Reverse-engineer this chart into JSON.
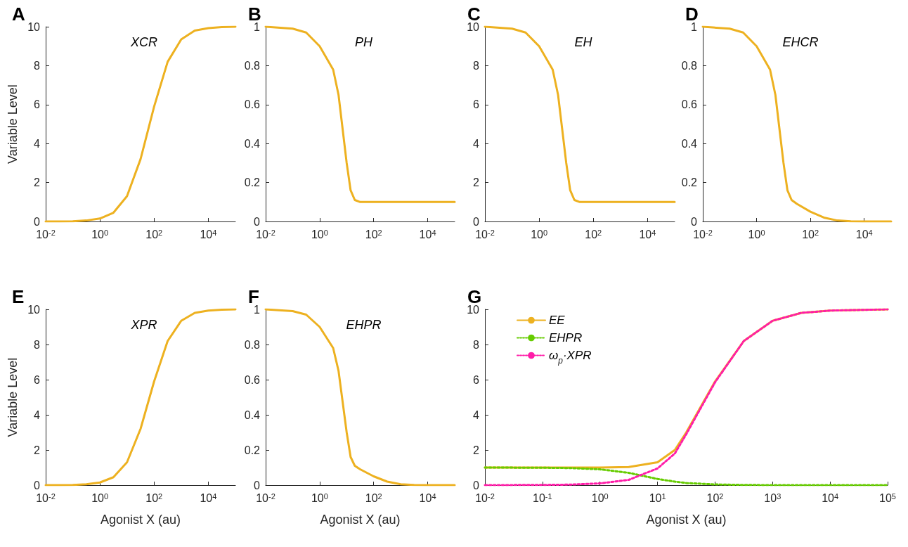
{
  "chart_data": [
    {
      "type": "line",
      "title": "A",
      "subtitle": "XCR",
      "ylabel": "Variable Level",
      "log": "x",
      "line_style": "solid",
      "color": "#edb120",
      "x": [
        0.01,
        0.0316,
        0.1,
        0.316,
        1,
        3.16,
        10,
        31.6,
        100,
        316,
        1000,
        3162,
        10000,
        31623,
        100000
      ],
      "values": [
        0,
        0,
        0.01,
        0.05,
        0.15,
        0.45,
        1.3,
        3.2,
        5.9,
        8.2,
        9.35,
        9.8,
        9.93,
        9.98,
        10
      ],
      "xlim": [
        0.01,
        100000
      ],
      "xticks": [
        {
          "value": 0.01,
          "label": "10$^{-2}$"
        },
        {
          "value": 1,
          "label": "10$^{0}$"
        },
        {
          "value": 100,
          "label": "10$^{2}$"
        },
        {
          "value": 10000,
          "label": "10$^{4}$"
        }
      ],
      "ylim": [
        0,
        10
      ],
      "yticks": [
        0,
        2,
        4,
        6,
        8,
        10
      ]
    },
    {
      "type": "line",
      "title": "B",
      "subtitle": "PH",
      "log": "x",
      "line_style": "solid",
      "color": "#edb120",
      "x": [
        0.01,
        0.1,
        0.316,
        1,
        3.16,
        5,
        7,
        10,
        14,
        20,
        31.6,
        100,
        1000,
        10000,
        100000
      ],
      "values": [
        1,
        0.99,
        0.97,
        0.9,
        0.78,
        0.65,
        0.48,
        0.3,
        0.16,
        0.11,
        0.1,
        0.1,
        0.1,
        0.1,
        0.1
      ],
      "xlim": [
        0.01,
        100000
      ],
      "xticks": [
        {
          "value": 0.01,
          "label": "10$^{-2}$"
        },
        {
          "value": 1,
          "label": "10$^{0}$"
        },
        {
          "value": 100,
          "label": "10$^{2}$"
        },
        {
          "value": 10000,
          "label": "10$^{4}$"
        }
      ],
      "ylim": [
        0,
        1
      ],
      "yticks": [
        0,
        0.2,
        0.4,
        0.6,
        0.8,
        1
      ]
    },
    {
      "type": "line",
      "title": "C",
      "subtitle": "EH",
      "log": "x",
      "line_style": "solid",
      "color": "#edb120",
      "x": [
        0.01,
        0.1,
        0.316,
        1,
        3.16,
        5,
        7,
        10,
        14,
        20,
        31.6,
        100,
        1000,
        10000,
        100000
      ],
      "values": [
        10,
        9.9,
        9.7,
        9,
        7.8,
        6.5,
        4.8,
        3,
        1.6,
        1.1,
        1,
        1,
        1,
        1,
        1
      ],
      "xlim": [
        0.01,
        100000
      ],
      "xticks": [
        {
          "value": 0.01,
          "label": "10$^{-2}$"
        },
        {
          "value": 1,
          "label": "10$^{0}$"
        },
        {
          "value": 100,
          "label": "10$^{2}$"
        },
        {
          "value": 10000,
          "label": "10$^{4}$"
        }
      ],
      "ylim": [
        0,
        10
      ],
      "yticks": [
        0,
        2,
        4,
        6,
        8,
        10
      ]
    },
    {
      "type": "line",
      "title": "D",
      "subtitle": "EHCR",
      "log": "x",
      "line_style": "solid",
      "color": "#edb120",
      "x": [
        0.01,
        0.1,
        0.316,
        1,
        3.16,
        5,
        7,
        10,
        14,
        20,
        31.6,
        100,
        316,
        1000,
        3162,
        10000,
        100000
      ],
      "values": [
        1,
        0.99,
        0.97,
        0.9,
        0.78,
        0.65,
        0.48,
        0.3,
        0.16,
        0.11,
        0.09,
        0.05,
        0.02,
        0.005,
        0.001,
        0,
        0
      ],
      "xlim": [
        0.01,
        100000
      ],
      "xticks": [
        {
          "value": 0.01,
          "label": "10$^{-2}$"
        },
        {
          "value": 1,
          "label": "10$^{0}$"
        },
        {
          "value": 100,
          "label": "10$^{2}$"
        },
        {
          "value": 10000,
          "label": "10$^{4}$"
        }
      ],
      "ylim": [
        0,
        1
      ],
      "yticks": [
        0,
        0.2,
        0.4,
        0.6,
        0.8,
        1
      ]
    },
    {
      "type": "line",
      "title": "E",
      "subtitle": "XPR",
      "ylabel": "Variable Level",
      "xlabel": "Agonist X (au)",
      "log": "x",
      "line_style": "solid",
      "color": "#edb120",
      "x": [
        0.01,
        0.0316,
        0.1,
        0.316,
        1,
        3.16,
        10,
        31.6,
        100,
        316,
        1000,
        3162,
        10000,
        31623,
        100000
      ],
      "values": [
        0,
        0,
        0.01,
        0.05,
        0.15,
        0.45,
        1.3,
        3.2,
        5.9,
        8.2,
        9.35,
        9.8,
        9.93,
        9.98,
        10
      ],
      "xlim": [
        0.01,
        100000
      ],
      "xticks": [
        {
          "value": 0.01,
          "label": "10$^{-2}$"
        },
        {
          "value": 1,
          "label": "10$^{0}$"
        },
        {
          "value": 100,
          "label": "10$^{2}$"
        },
        {
          "value": 10000,
          "label": "10$^{4}$"
        }
      ],
      "ylim": [
        0,
        10
      ],
      "yticks": [
        0,
        2,
        4,
        6,
        8,
        10
      ]
    },
    {
      "type": "line",
      "title": "F",
      "subtitle": "EHPR",
      "xlabel": "Agonist X (au)",
      "log": "x",
      "line_style": "solid",
      "color": "#edb120",
      "x": [
        0.01,
        0.1,
        0.316,
        1,
        3.16,
        5,
        7,
        10,
        14,
        20,
        31.6,
        100,
        316,
        1000,
        3162,
        10000,
        100000
      ],
      "values": [
        1,
        0.99,
        0.97,
        0.9,
        0.78,
        0.65,
        0.48,
        0.3,
        0.16,
        0.11,
        0.09,
        0.05,
        0.02,
        0.005,
        0.001,
        0,
        0
      ],
      "xlim": [
        0.01,
        100000
      ],
      "xticks": [
        {
          "value": 0.01,
          "label": "10$^{-2}$"
        },
        {
          "value": 1,
          "label": "10$^{0}$"
        },
        {
          "value": 100,
          "label": "10$^{2}$"
        },
        {
          "value": 10000,
          "label": "10$^{4}$"
        }
      ],
      "ylim": [
        0,
        1
      ],
      "yticks": [
        0,
        0.2,
        0.4,
        0.6,
        0.8,
        1
      ]
    },
    {
      "type": "line",
      "title": "G",
      "xlabel": "Agonist X (au)",
      "log": "x",
      "legend": "top left",
      "x": [
        0.01,
        0.1,
        0.316,
        1,
        3.16,
        10,
        20,
        31.6,
        100,
        316,
        1000,
        3162,
        10000,
        100000
      ],
      "series": [
        {
          "name": "EE",
          "color": "#edb120",
          "line_style": "solid",
          "values": [
            1,
            1,
            1,
            1,
            1.03,
            1.3,
            2,
            3,
            5.9,
            8.2,
            9.35,
            9.8,
            9.93,
            10
          ]
        },
        {
          "name": "EHPR",
          "color": "#66cc00",
          "line_style": "dotted",
          "values": [
            1,
            0.99,
            0.97,
            0.9,
            0.7,
            0.35,
            0.2,
            0.12,
            0.04,
            0.01,
            0,
            0,
            0,
            0
          ]
        },
        {
          "name": "ω$_{p}$·XPR",
          "color": "#ff1ca8",
          "line_style": "dotted",
          "values": [
            0,
            0.01,
            0.03,
            0.1,
            0.3,
            0.95,
            1.8,
            2.9,
            5.85,
            8.2,
            9.35,
            9.8,
            9.93,
            10
          ]
        }
      ],
      "xlim": [
        0.01,
        100000
      ],
      "xticks": [
        {
          "value": 0.01,
          "label": "10$^{-2}$"
        },
        {
          "value": 0.1,
          "label": "10$^{-1}$"
        },
        {
          "value": 1,
          "label": "10$^{0}$"
        },
        {
          "value": 10,
          "label": "10$^{1}$"
        },
        {
          "value": 100,
          "label": "10$^{2}$"
        },
        {
          "value": 1000,
          "label": "10$^{3}$"
        },
        {
          "value": 10000,
          "label": "10$^{4}$"
        },
        {
          "value": 100000,
          "label": "10$^{5}$"
        }
      ],
      "ylim": [
        0,
        10
      ],
      "yticks": [
        0,
        2,
        4,
        6,
        8,
        10
      ]
    }
  ]
}
